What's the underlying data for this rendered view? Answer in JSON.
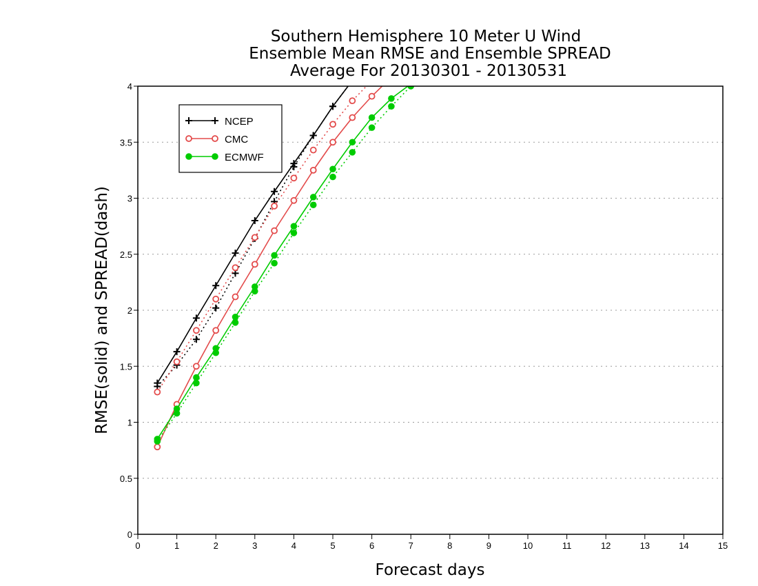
{
  "chart_data": {
    "type": "line",
    "title": [
      "Southern Hemisphere 10 Meter U Wind",
      "Ensemble Mean RMSE and Ensemble SPREAD",
      "Average For 20130301 - 20130531"
    ],
    "xlabel": "Forecast days",
    "ylabel": "RMSE(solid) and SPREAD(dash)",
    "xlim": [
      0,
      15
    ],
    "ylim": [
      0,
      4
    ],
    "xticks": [
      "0",
      "1",
      "2",
      "3",
      "4",
      "5",
      "6",
      "7",
      "8",
      "9",
      "10",
      "11",
      "12",
      "13",
      "14",
      "15"
    ],
    "yticks": [
      "0",
      "0.5",
      "1",
      "1.5",
      "2",
      "2.5",
      "3",
      "3.5",
      "4"
    ],
    "grid": "horizontal dotted",
    "legend_position": "top-left",
    "series": [
      {
        "name": "NCEP",
        "color": "#000000",
        "marker": "plus",
        "rmse": {
          "x": [
            0.5,
            1,
            1.5,
            2,
            2.5,
            3,
            3.5,
            4,
            4.5,
            5,
            5.5
          ],
          "y": [
            1.35,
            1.63,
            1.93,
            2.22,
            2.51,
            2.8,
            3.06,
            3.31,
            3.56,
            3.82,
            4.05
          ]
        },
        "spread": {
          "x": [
            0.5,
            1,
            1.5,
            2,
            2.5,
            3,
            3.5,
            4,
            4.5,
            5,
            5.5
          ],
          "y": [
            1.32,
            1.51,
            1.74,
            2.02,
            2.33,
            2.64,
            2.97,
            3.28,
            3.56,
            3.82,
            4.05
          ]
        }
      },
      {
        "name": "CMC",
        "color": "#e34a4a",
        "marker": "open-circle",
        "rmse": {
          "x": [
            0.5,
            1,
            1.5,
            2,
            2.5,
            3,
            3.5,
            4,
            4.5,
            5,
            5.5,
            6,
            6.5
          ],
          "y": [
            0.78,
            1.16,
            1.5,
            1.82,
            2.12,
            2.41,
            2.71,
            2.98,
            3.25,
            3.5,
            3.72,
            3.91,
            4.08
          ]
        },
        "spread": {
          "x": [
            0.5,
            1,
            1.5,
            2,
            2.5,
            3,
            3.5,
            4,
            4.5,
            5,
            5.5,
            6
          ],
          "y": [
            1.27,
            1.54,
            1.82,
            2.1,
            2.38,
            2.65,
            2.93,
            3.18,
            3.43,
            3.66,
            3.87,
            4.05
          ]
        }
      },
      {
        "name": "ECMWF",
        "color": "#00cc00",
        "marker": "filled-circle",
        "rmse": {
          "x": [
            0.5,
            1,
            1.5,
            2,
            2.5,
            3,
            3.5,
            4,
            4.5,
            5,
            5.5,
            6,
            6.5,
            7
          ],
          "y": [
            0.85,
            1.12,
            1.4,
            1.66,
            1.94,
            2.21,
            2.49,
            2.75,
            3.01,
            3.26,
            3.5,
            3.72,
            3.89,
            4.02
          ]
        },
        "spread": {
          "x": [
            0.5,
            1,
            1.5,
            2,
            2.5,
            3,
            3.5,
            4,
            4.5,
            5,
            5.5,
            6,
            6.5,
            7
          ],
          "y": [
            0.83,
            1.08,
            1.35,
            1.62,
            1.89,
            2.17,
            2.42,
            2.69,
            2.94,
            3.19,
            3.41,
            3.63,
            3.82,
            4.0
          ]
        }
      }
    ]
  }
}
